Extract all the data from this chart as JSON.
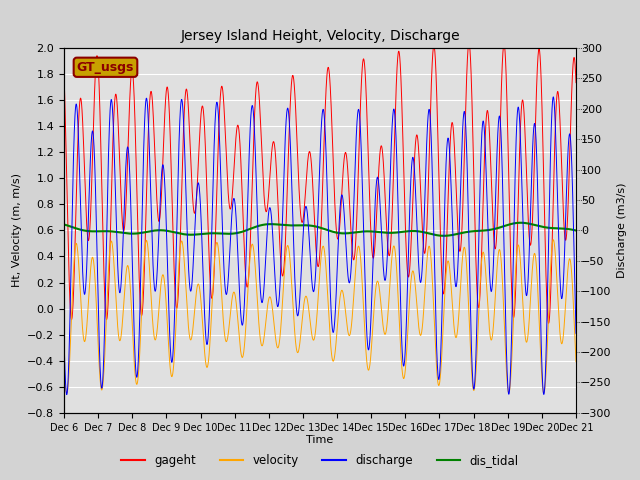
{
  "title": "Jersey Island Height, Velocity, Discharge",
  "xlabel": "Time",
  "ylabel_left": "Ht, Velocity (m, m/s)",
  "ylabel_right": "Discharge (m3/s)",
  "ylim_left": [
    -0.8,
    2.0
  ],
  "ylim_right": [
    -300,
    300
  ],
  "yticks_left": [
    -0.8,
    -0.6,
    -0.4,
    -0.2,
    0.0,
    0.2,
    0.4,
    0.6,
    0.8,
    1.0,
    1.2,
    1.4,
    1.6,
    1.8,
    2.0
  ],
  "yticks_right": [
    -300,
    -250,
    -200,
    -150,
    -100,
    -50,
    0,
    50,
    100,
    150,
    200,
    250,
    300
  ],
  "x_tick_labels": [
    "Dec 6",
    "Dec 7",
    "Dec 8",
    "Dec 9",
    "Dec 10",
    "Dec 11",
    "Dec 12",
    "Dec 13",
    "Dec 14",
    "Dec 15",
    "Dec 16",
    "Dec 17",
    "Dec 18",
    "Dec 19",
    "Dec 20",
    "Dec 21"
  ],
  "bg_color": "#d3d3d3",
  "plot_bg_color": "#e0e0e0",
  "grid_color": "#ffffff",
  "legend_labels": [
    "gageht",
    "velocity",
    "discharge",
    "dis_tidal"
  ],
  "legend_colors": [
    "red",
    "orange",
    "blue",
    "green"
  ],
  "annotation_text": "GT_usgs",
  "annotation_bg": "#c8a000",
  "annotation_fg": "#8b0000",
  "gageht_color": "red",
  "velocity_color": "orange",
  "discharge_color": "blue",
  "dis_tidal_color": "green",
  "tidal_period_M2": 12.42,
  "tidal_period_K1": 23.93,
  "n_points": 5000,
  "duration_days": 15
}
